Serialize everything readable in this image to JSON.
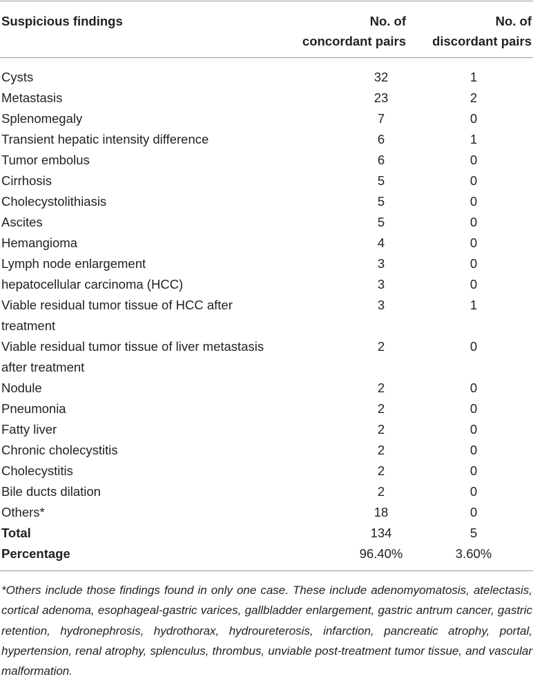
{
  "table": {
    "header": [
      "Suspicious findings",
      "No. of\nconcordant pairs",
      "No. of\ndiscordant pairs"
    ],
    "rows": [
      [
        "Cysts",
        32,
        1
      ],
      [
        "Metastasis",
        23,
        2
      ],
      [
        "Splenomegaly",
        7,
        0
      ],
      [
        "Transient hepatic intensity difference",
        6,
        1
      ],
      [
        "Tumor embolus",
        6,
        0
      ],
      [
        "Cirrhosis",
        5,
        0
      ],
      [
        "Cholecystolithiasis",
        5,
        0
      ],
      [
        "Ascites",
        5,
        0
      ],
      [
        "Hemangioma",
        4,
        0
      ],
      [
        "Lymph node enlargement",
        3,
        0
      ],
      [
        "hepatocellular carcinoma (HCC)",
        3,
        0
      ],
      [
        "Viable residual tumor tissue of HCC after treatment",
        3,
        1
      ],
      [
        "Viable residual tumor tissue of liver metastasis after treatment",
        2,
        0
      ],
      [
        "Nodule",
        2,
        0
      ],
      [
        "Pneumonia",
        2,
        0
      ],
      [
        "Fatty liver",
        2,
        0
      ],
      [
        "Chronic cholecystitis",
        2,
        0
      ],
      [
        "Cholecystitis",
        2,
        0
      ],
      [
        "Bile ducts dilation",
        2,
        0
      ],
      [
        "Others*",
        18,
        0
      ]
    ],
    "summary": [
      [
        "Total",
        134,
        5
      ],
      [
        "Percentage",
        "96.40%",
        "3.60%"
      ]
    ],
    "footnote": "*Others include those findings found in only one case. These include adenomyomatosis, atelectasis, cortical adenoma, esophageal-gastric varices, gallbladder enlargement, gastric antrum cancer, gastric retention, hydronephrosis, hydrothorax, hydroureterosis, infarction, pancreatic atrophy, portal, hypertension, renal atrophy, splenculus, thrombus, unviable post-treatment tumor tissue, and vascular malformation."
  }
}
